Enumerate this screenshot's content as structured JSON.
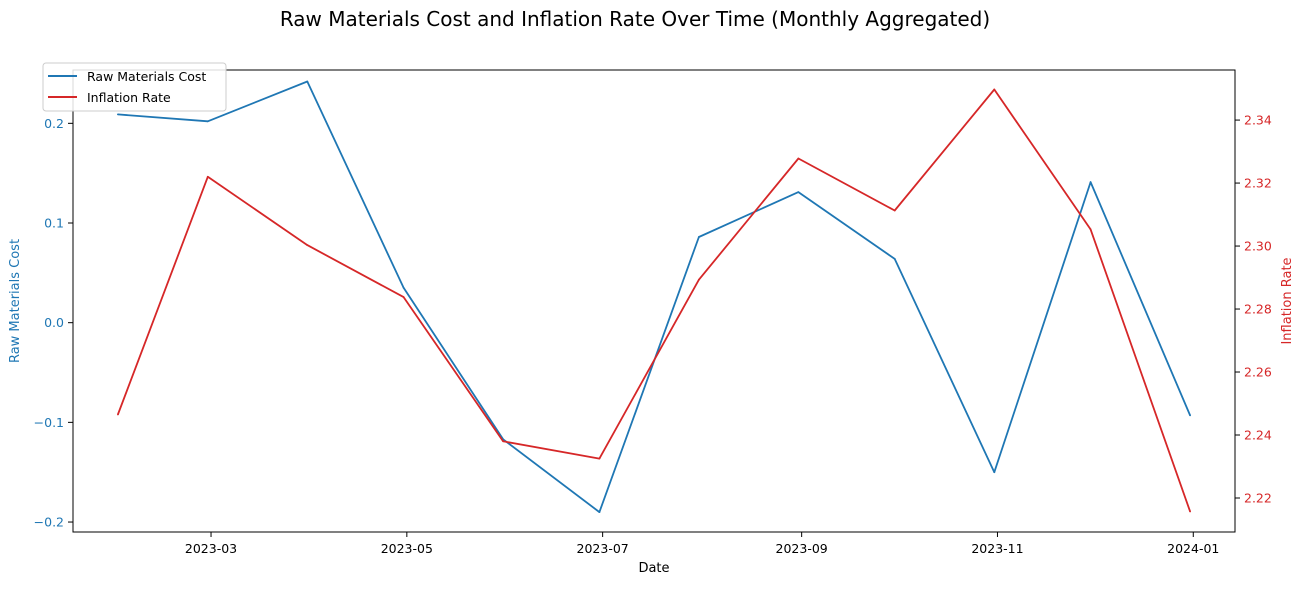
{
  "chart_data": {
    "type": "line",
    "title": "Raw Materials Cost and Inflation Rate Over Time (Monthly Aggregated)",
    "xlabel": "Date",
    "ylabel_left": "Raw Materials Cost",
    "ylabel_right": "Inflation Rate",
    "x": [
      "2023-01-31",
      "2023-02-28",
      "2023-03-31",
      "2023-04-30",
      "2023-05-31",
      "2023-06-30",
      "2023-07-31",
      "2023-08-31",
      "2023-09-30",
      "2023-10-31",
      "2023-11-30",
      "2023-12-31"
    ],
    "x_ticks": [
      "2023-03",
      "2023-05",
      "2023-07",
      "2023-09",
      "2023-11",
      "2024-01"
    ],
    "xlim": [
      "2023-01-17",
      "2024-01-14"
    ],
    "y_left_ticks": [
      "−0.2",
      "−0.1",
      "0.0",
      "0.1",
      "0.2"
    ],
    "y_left_lim": [
      -0.21,
      0.2535
    ],
    "y_right_ticks": [
      "2.22",
      "2.24",
      "2.26",
      "2.28",
      "2.30",
      "2.32",
      "2.34"
    ],
    "y_right_lim": [
      2.2092,
      2.3559
    ],
    "series": [
      {
        "name": "Raw Materials Cost",
        "axis": "left",
        "color": "#1f77b4",
        "values": [
          0.209,
          0.202,
          0.242,
          0.035,
          -0.117,
          -0.19,
          0.086,
          0.131,
          0.064,
          -0.15,
          0.141,
          -0.093
        ]
      },
      {
        "name": "Inflation Rate",
        "axis": "right",
        "color": "#d62728",
        "values": [
          2.2465,
          2.322,
          2.3003,
          2.2838,
          2.238,
          2.2325,
          2.2893,
          2.3278,
          2.3113,
          2.3497,
          2.3053,
          2.2157
        ]
      }
    ],
    "legend_position": "top-left",
    "grid": false
  }
}
